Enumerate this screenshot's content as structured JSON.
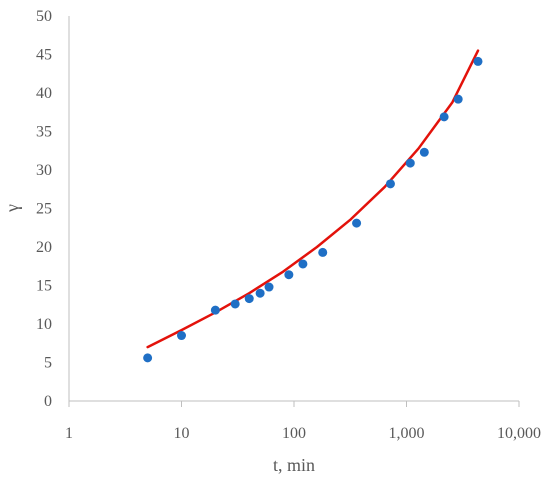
{
  "chart_data": {
    "type": "scatter",
    "title": "",
    "xlabel": "t, min",
    "ylabel": "γ",
    "x_scale": "log",
    "xlim": [
      1,
      10000
    ],
    "ylim": [
      0,
      50
    ],
    "x_ticks": [
      1,
      10,
      100,
      1000,
      10000
    ],
    "x_tick_labels": [
      "1",
      "10",
      "100",
      "1,000",
      "10,000"
    ],
    "y_ticks": [
      0,
      5,
      10,
      15,
      20,
      25,
      30,
      35,
      40,
      45,
      50
    ],
    "y_tick_labels": [
      "0",
      "5",
      "10",
      "15",
      "20",
      "25",
      "30",
      "35",
      "40",
      "45",
      "50"
    ],
    "grid": false,
    "legend": "none",
    "series": [
      {
        "kind": "points",
        "color": "#1f6fc5",
        "x": [
          5,
          10,
          20,
          30,
          40,
          50,
          60,
          90,
          120,
          180,
          360,
          720,
          1080,
          1440,
          2160,
          2880,
          4320
        ],
        "y": [
          5.6,
          8.5,
          11.8,
          12.6,
          13.3,
          14.0,
          14.8,
          16.4,
          17.8,
          19.3,
          23.1,
          28.2,
          30.9,
          32.3,
          36.9,
          39.2,
          44.1
        ]
      },
      {
        "kind": "trendline",
        "color": "#e3120b",
        "x": [
          5,
          10,
          20,
          40,
          80,
          160,
          320,
          640,
          1280,
          2560,
          4320
        ],
        "y": [
          7.0,
          9.2,
          11.5,
          14.0,
          16.8,
          20.0,
          23.6,
          27.8,
          32.8,
          38.8,
          45.5
        ]
      }
    ]
  }
}
